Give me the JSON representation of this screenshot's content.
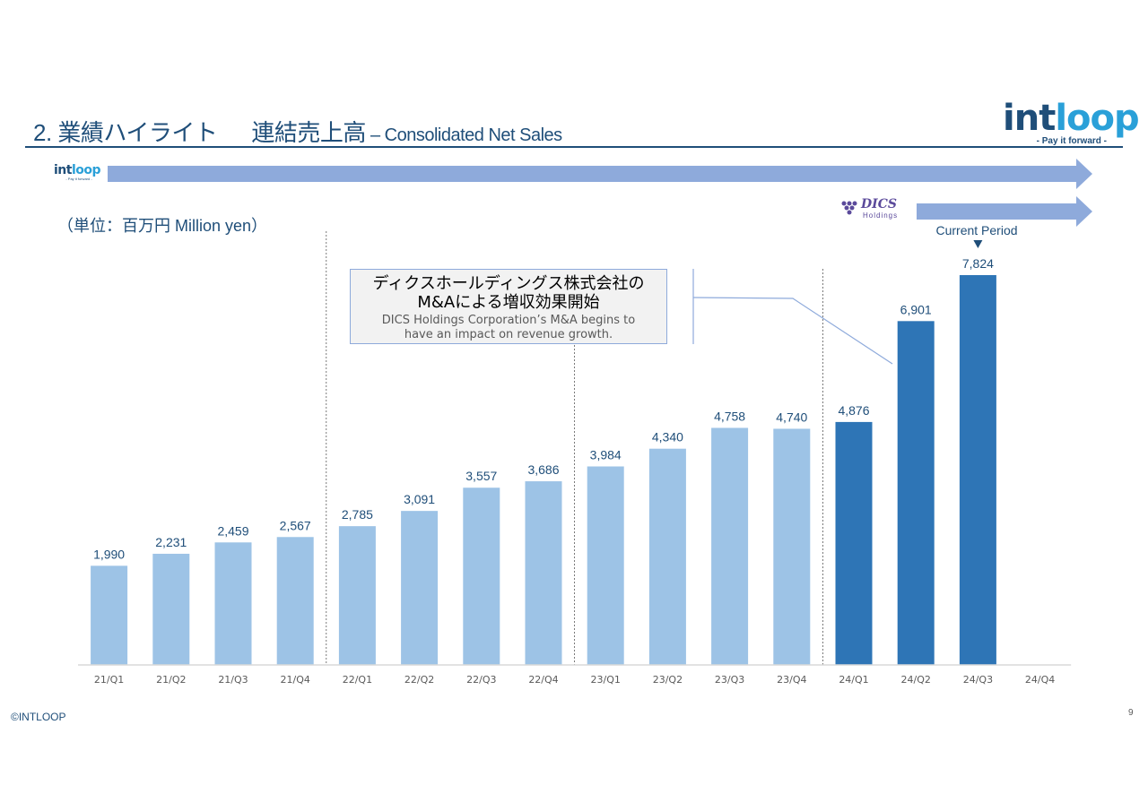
{
  "slide": {
    "title_num": "2. 業績ハイライト",
    "title_jp": "連結売上高",
    "title_en": " – Consolidated Net Sales",
    "logo_word_a": "int",
    "logo_word_b": "loop",
    "logo_tag": "- Pay it forward -",
    "dics_word": "DICS",
    "dics_sub": "Holdings",
    "unit": "（単位：百万円 Million yen）",
    "current_period": "Current Period",
    "callout_jp_1": "ディクスホールディングス株式会社の",
    "callout_jp_2": "M&Aによる増収効果開始",
    "callout_en_1": "DICS Holdings Corporation’s M&A begins to",
    "callout_en_2": "have an impact on revenue growth.",
    "copyright": "©INTLOOP",
    "page_number": "9"
  },
  "colors": {
    "title": "#1f4e79",
    "bar_light": "#9dc3e6",
    "bar_dark": "#2e75b6",
    "arrow": "#8eaadb",
    "label": "#1f4e79",
    "axis_label": "#595959"
  },
  "chart_data": {
    "type": "bar",
    "title": "",
    "xlabel": "",
    "ylabel": "",
    "ylim": [
      0,
      8500
    ],
    "grid": false,
    "categories": [
      "21/Q1",
      "21/Q2",
      "21/Q3",
      "21/Q4",
      "22/Q1",
      "22/Q2",
      "22/Q3",
      "22/Q4",
      "23/Q1",
      "23/Q2",
      "23/Q3",
      "23/Q4",
      "24/Q1",
      "24/Q2",
      "24/Q3",
      "24/Q4"
    ],
    "values": [
      1990,
      2231,
      2459,
      2567,
      2785,
      3091,
      3557,
      3686,
      3984,
      4340,
      4758,
      4740,
      4876,
      6901,
      7824,
      null
    ],
    "value_labels": [
      "1,990",
      "2,231",
      "2,459",
      "2,567",
      "2,785",
      "3,091",
      "3,557",
      "3,686",
      "3,984",
      "4,340",
      "4,758",
      "4,740",
      "4,876",
      "6,901",
      "7,824",
      ""
    ],
    "highlight": [
      false,
      false,
      false,
      false,
      false,
      false,
      false,
      false,
      false,
      false,
      false,
      false,
      true,
      true,
      true,
      true
    ],
    "current_period_index": 14,
    "year_separators_after": [
      3,
      7,
      11
    ]
  }
}
